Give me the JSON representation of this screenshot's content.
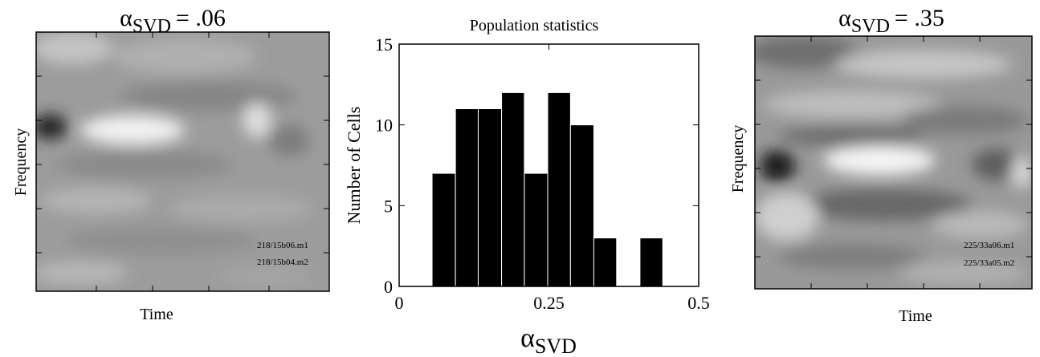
{
  "chart_data": {
    "type": "histogram",
    "title": "Population statistics",
    "x_label": {
      "symbol": "α",
      "subscript": "SVD"
    },
    "y_label": "Number of Cells",
    "bins": [
      0.055,
      0.094,
      0.132,
      0.171,
      0.209,
      0.248,
      0.286,
      0.325,
      0.363,
      0.402,
      0.44
    ],
    "values": [
      7,
      11,
      11,
      12,
      7,
      12,
      10,
      3,
      0,
      3
    ],
    "color": "#000000",
    "xlim": [
      0,
      0.5
    ],
    "xticks": [
      0,
      0.25,
      0.5
    ],
    "ylim": [
      0,
      15
    ],
    "yticks": [
      0,
      5,
      10,
      15
    ]
  },
  "panels": [
    {
      "title": {
        "symbol": "α",
        "subscript": "SVD",
        "text": "= .06"
      },
      "x_label": "Time",
      "y_label": "Frequency",
      "notes": [
        "218/15b06.m1",
        "218/15b04.m2"
      ]
    },
    {
      "title": {
        "symbol": "α",
        "subscript": "SVD",
        "text": "= .35"
      },
      "x_label": "Time",
      "y_label": "Frequency",
      "notes": [
        "225/33a06.m1",
        "225/33a05.m2"
      ]
    }
  ]
}
